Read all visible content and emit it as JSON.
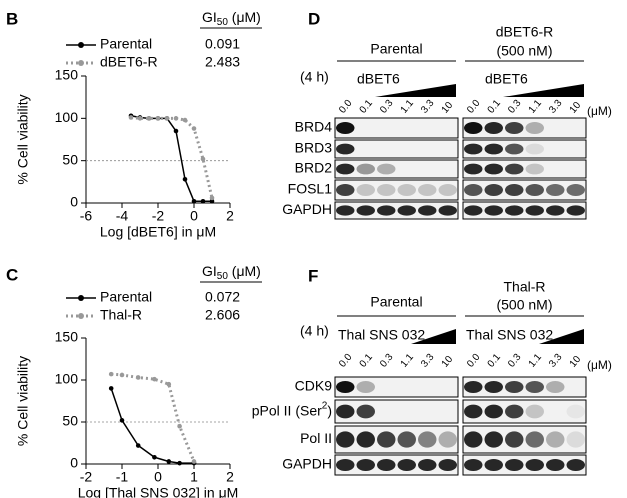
{
  "chart_data": [
    {
      "type": "line",
      "panel": "B",
      "gi50_header": {
        "text": "GI",
        "sub": "50",
        "after": " (μM)"
      },
      "xlabel": "Log [dBET6] in μM",
      "ylabel": "% Cell viability",
      "xlim": [
        -6,
        2
      ],
      "xticks": [
        -6,
        -4,
        -2,
        0,
        2
      ],
      "ylim": [
        0,
        150
      ],
      "yticks": [
        0,
        50,
        100,
        150
      ],
      "hline": 50,
      "series": [
        {
          "name": "Parental",
          "gi50": 0.091,
          "color": "#000000",
          "style": "solid",
          "x": [
            -3.5,
            -3,
            -2.5,
            -2,
            -1.5,
            -1,
            -0.5,
            0,
            0.5,
            1
          ],
          "values": [
            103,
            101,
            100,
            100,
            100,
            85,
            28,
            2,
            2,
            2
          ]
        },
        {
          "name": "dBET6-R",
          "gi50": 2.483,
          "color": "#999999",
          "style": "dotted",
          "x": [
            -3.5,
            -3,
            -2.5,
            -2,
            -1.5,
            -1,
            -0.5,
            0,
            0.5,
            1
          ],
          "values": [
            101,
            100,
            100,
            100,
            100,
            100,
            98,
            88,
            52,
            6
          ]
        }
      ]
    },
    {
      "type": "line",
      "panel": "C",
      "gi50_header": {
        "text": "GI",
        "sub": "50",
        "after": " (μM)"
      },
      "xlabel": "Log [Thal SNS 032] in μM",
      "ylabel": "% Cell viability",
      "xlim": [
        -2,
        2
      ],
      "xticks": [
        -2,
        -1,
        0,
        1,
        2
      ],
      "ylim": [
        0,
        150
      ],
      "yticks": [
        0,
        50,
        100,
        150
      ],
      "hline": 50,
      "series": [
        {
          "name": "Parental",
          "gi50": 0.072,
          "color": "#000000",
          "style": "solid",
          "x": [
            -1.3,
            -1.0,
            -0.55,
            -0.1,
            0.3,
            0.6,
            1.0
          ],
          "values": [
            90,
            52,
            22,
            8,
            3,
            1,
            1
          ]
        },
        {
          "name": "Thal-R",
          "gi50": 2.606,
          "color": "#999999",
          "style": "dotted",
          "x": [
            -1.3,
            -1.0,
            -0.55,
            -0.1,
            0.3,
            0.6,
            1.0
          ],
          "values": [
            107,
            106,
            103,
            101,
            95,
            45,
            3
          ]
        }
      ]
    }
  ],
  "blots": [
    {
      "panel": "D",
      "time": "(4 h)",
      "unit": "(μM)",
      "concentrations": [
        "0.0",
        "0.1",
        "0.3",
        "1.1",
        "3.3",
        "10"
      ],
      "groups": [
        {
          "title": [
            "Parental"
          ],
          "drug": "dBET6"
        },
        {
          "title": [
            "dBET6-R",
            "(500 nM)"
          ],
          "drug": "dBET6"
        }
      ],
      "rows": [
        {
          "label": "BRD4"
        },
        {
          "label": "BRD3"
        },
        {
          "label": "BRD2"
        },
        {
          "label": "FOSL1"
        },
        {
          "label": "GAPDH"
        }
      ]
    },
    {
      "panel": "F",
      "time": "(4 h)",
      "unit": "(μM)",
      "concentrations": [
        "0.0",
        "0.1",
        "0.3",
        "1.1",
        "3.3",
        "10"
      ],
      "groups": [
        {
          "title": [
            "Parental"
          ],
          "drug": "Thal SNS 032"
        },
        {
          "title": [
            "Thal-R",
            "(500 nM)"
          ],
          "drug": "Thal SNS 032"
        }
      ],
      "rows": [
        {
          "label": "CDK9"
        },
        {
          "label": {
            "text": "pPol II (Ser",
            "sup": "2",
            "after": ")"
          }
        },
        {
          "label": "Pol II"
        },
        {
          "label": "GAPDH"
        }
      ]
    }
  ]
}
